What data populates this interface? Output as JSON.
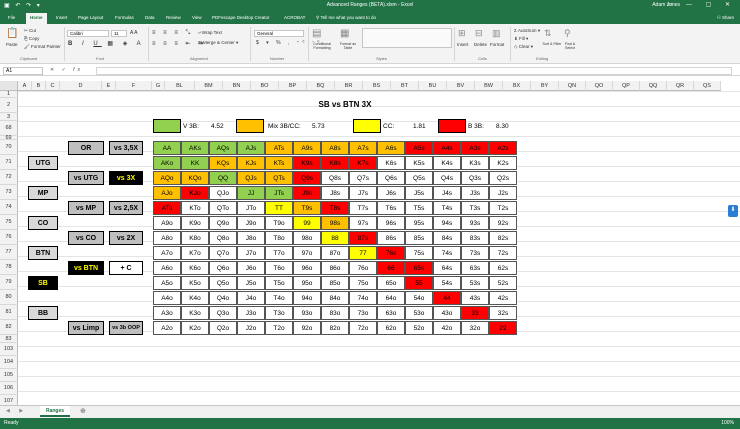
{
  "window": {
    "title": "Advanced Ranges (BETA).xlsm - Excel",
    "user": "Adam Jones"
  },
  "tabs": [
    "File",
    "Home",
    "Insert",
    "Page Layout",
    "Formulas",
    "Data",
    "Review",
    "View",
    "PDFescape Desktop Creator",
    "ACROBAT"
  ],
  "tell_me": "Tell me what you want to do",
  "share_label": "Share",
  "ribbon": {
    "paste": "Paste",
    "cut": "Cut",
    "copy": "Copy",
    "format_painter": "Format Painter",
    "clipboard": "Clipboard",
    "font": "Font",
    "font_name": "Calibri",
    "font_size": "11",
    "alignment": "Alignment",
    "wrap_text": "Wrap Text",
    "merge_center": "Merge & Center",
    "number": "Number",
    "number_format": "General",
    "conditional_formatting": "Conditional Formatting",
    "format_as_table": "Format as Table",
    "styles": "Styles",
    "cells": "Cells",
    "insert": "Insert",
    "delete": "Delete",
    "format": "Format",
    "autosum": "AutoSum",
    "fill": "Fill",
    "clear": "Clear",
    "sort_filter": "Sort & Filter",
    "find_select": "Find & Select",
    "editing": "Editing"
  },
  "formula_bar": {
    "name_box": "A1",
    "fx": "fx",
    "value": ""
  },
  "columns": [
    "A",
    "B",
    "C",
    "D",
    "E",
    "F",
    "G",
    "BL",
    "BM",
    "BN",
    "BO",
    "BP",
    "BQ",
    "BR",
    "BS",
    "BT",
    "BU",
    "BV",
    "BW",
    "BX",
    "BY",
    "QN",
    "QO",
    "QP",
    "QQ",
    "QR",
    "QS"
  ],
  "rows": [
    "1",
    "2",
    "3",
    "68",
    "69",
    "70",
    "71",
    "72",
    "73",
    "74",
    "75",
    "76",
    "77",
    "78",
    "79",
    "80",
    "81",
    "82",
    "83",
    "103",
    "104",
    "105",
    "106",
    "107"
  ],
  "sheet": {
    "title": "SB vs BTN 3X",
    "legend": [
      {
        "label": "V 3B:",
        "value": "4.52",
        "color": "#92d050"
      },
      {
        "label": "Mix 3B/CC:",
        "value": "5.73",
        "color": "#ffc000"
      },
      {
        "label": "CC:",
        "value": "1.81",
        "color": "#ffff00"
      },
      {
        "label": "B 3B:",
        "value": "8.30",
        "color": "#ff0000"
      }
    ],
    "buttons_left": [
      {
        "text": "UTG",
        "row": 1,
        "color": "#d9d9d9",
        "textColor": "#000"
      },
      {
        "text": "MP",
        "row": 3,
        "color": "#d9d9d9",
        "textColor": "#000"
      },
      {
        "text": "CO",
        "row": 5,
        "color": "#d9d9d9",
        "textColor": "#000"
      },
      {
        "text": "BTN",
        "row": 7,
        "color": "#d9d9d9",
        "textColor": "#000"
      },
      {
        "text": "SB",
        "row": 9,
        "color": "#000",
        "textColor": "#ffff00"
      },
      {
        "text": "BB",
        "row": 11,
        "color": "#d9d9d9",
        "textColor": "#000"
      }
    ],
    "buttons_mid": [
      {
        "text": "OR",
        "row": 0,
        "color": "#bfbfbf",
        "textColor": "#000"
      },
      {
        "text": "vs UTG",
        "row": 2,
        "color": "#bfbfbf",
        "textColor": "#000"
      },
      {
        "text": "vs MP",
        "row": 4,
        "color": "#bfbfbf",
        "textColor": "#000"
      },
      {
        "text": "vs CO",
        "row": 6,
        "color": "#bfbfbf",
        "textColor": "#000"
      },
      {
        "text": "vs BTN",
        "row": 8,
        "color": "#000",
        "textColor": "#ffff00"
      },
      {
        "text": "vs Limp",
        "row": 12,
        "color": "#bfbfbf",
        "textColor": "#000"
      }
    ],
    "buttons_right": [
      {
        "text": "vs 3,5X",
        "row": 0,
        "color": "#bfbfbf",
        "textColor": "#000"
      },
      {
        "text": "vs 3X",
        "row": 2,
        "color": "#000",
        "textColor": "#ffff00"
      },
      {
        "text": "vs 2,5X",
        "row": 4,
        "color": "#bfbfbf",
        "textColor": "#000"
      },
      {
        "text": "vs 2X",
        "row": 6,
        "color": "#bfbfbf",
        "textColor": "#000"
      },
      {
        "text": "+ C",
        "row": 8,
        "color": "#fff",
        "textColor": "#000"
      },
      {
        "text": "vs 3b OOP",
        "row": 12,
        "color": "#bfbfbf",
        "textColor": "#000"
      }
    ],
    "matrix": [
      [
        "AA",
        "AKs",
        "AQs",
        "AJs",
        "ATs",
        "A9s",
        "A8s",
        "A7s",
        "A6s",
        "A5s",
        "A4s",
        "A3s",
        "A2s"
      ],
      [
        "AKo",
        "KK",
        "KQs",
        "KJs",
        "KTs",
        "K9s",
        "K8s",
        "K7s",
        "K6s",
        "K5s",
        "K4s",
        "K3s",
        "K2s"
      ],
      [
        "AQo",
        "KQo",
        "QQ",
        "QJs",
        "QTs",
        "Q9s",
        "Q8s",
        "Q7s",
        "Q6s",
        "Q5s",
        "Q4s",
        "Q3s",
        "Q2s"
      ],
      [
        "AJo",
        "KJo",
        "QJo",
        "JJ",
        "JTs",
        "J9s",
        "J8s",
        "J7s",
        "J6s",
        "J5s",
        "J4s",
        "J3s",
        "J2s"
      ],
      [
        "ATo",
        "KTo",
        "QTo",
        "JTo",
        "TT",
        "T9s",
        "T8s",
        "T7s",
        "T6s",
        "T5s",
        "T4s",
        "T3s",
        "T2s"
      ],
      [
        "A9o",
        "K9o",
        "Q9o",
        "J9o",
        "T9o",
        "99",
        "98s",
        "97s",
        "96s",
        "95s",
        "94s",
        "93s",
        "92s"
      ],
      [
        "A8o",
        "K8o",
        "Q8o",
        "J8o",
        "T8o",
        "98o",
        "88",
        "87s",
        "86s",
        "85s",
        "84s",
        "83s",
        "82s"
      ],
      [
        "A7o",
        "K7o",
        "Q7o",
        "J7o",
        "T7o",
        "97o",
        "87o",
        "77",
        "76s",
        "75s",
        "74s",
        "73s",
        "72s"
      ],
      [
        "A6o",
        "K6o",
        "Q6o",
        "J6o",
        "T6o",
        "96o",
        "86o",
        "76o",
        "66",
        "65s",
        "64s",
        "63s",
        "62s"
      ],
      [
        "A5o",
        "K5o",
        "Q5o",
        "J5o",
        "T5o",
        "95o",
        "85o",
        "75o",
        "65o",
        "55",
        "54s",
        "53s",
        "52s"
      ],
      [
        "A4o",
        "K4o",
        "Q4o",
        "J4o",
        "T4o",
        "94o",
        "84o",
        "74o",
        "64o",
        "54o",
        "44",
        "43s",
        "42s"
      ],
      [
        "A3o",
        "K3o",
        "Q3o",
        "J3o",
        "T3o",
        "93o",
        "83o",
        "73o",
        "63o",
        "53o",
        "43o",
        "33",
        "32s"
      ],
      [
        "A2o",
        "K2o",
        "Q2o",
        "J2o",
        "T2o",
        "92o",
        "82o",
        "72o",
        "62o",
        "52o",
        "42o",
        "32o",
        "22"
      ]
    ],
    "matrix_colors": [
      [
        "G",
        "G",
        "G",
        "G",
        "O",
        "O",
        "O",
        "O",
        "O",
        "R",
        "R",
        "R",
        "R"
      ],
      [
        "G",
        "G",
        "O",
        "O",
        "O",
        "R",
        "R",
        "R",
        "W",
        "W",
        "W",
        "W",
        "W"
      ],
      [
        "O",
        "O",
        "G",
        "O",
        "O",
        "R",
        "W",
        "W",
        "W",
        "W",
        "W",
        "W",
        "W"
      ],
      [
        "O",
        "R",
        "W",
        "G",
        "G",
        "R",
        "W",
        "W",
        "W",
        "W",
        "W",
        "W",
        "W"
      ],
      [
        "R",
        "W",
        "W",
        "W",
        "Y",
        "O",
        "R",
        "W",
        "W",
        "W",
        "W",
        "W",
        "W"
      ],
      [
        "W",
        "W",
        "W",
        "W",
        "W",
        "Y",
        "O",
        "W",
        "W",
        "W",
        "W",
        "W",
        "W"
      ],
      [
        "W",
        "W",
        "W",
        "W",
        "W",
        "W",
        "Y",
        "R",
        "W",
        "W",
        "W",
        "W",
        "W"
      ],
      [
        "W",
        "W",
        "W",
        "W",
        "W",
        "W",
        "W",
        "Y",
        "R",
        "W",
        "W",
        "W",
        "W"
      ],
      [
        "W",
        "W",
        "W",
        "W",
        "W",
        "W",
        "W",
        "W",
        "R",
        "R",
        "W",
        "W",
        "W"
      ],
      [
        "W",
        "W",
        "W",
        "W",
        "W",
        "W",
        "W",
        "W",
        "W",
        "R",
        "W",
        "W",
        "W"
      ],
      [
        "W",
        "W",
        "W",
        "W",
        "W",
        "W",
        "W",
        "W",
        "W",
        "W",
        "R",
        "W",
        "W"
      ],
      [
        "W",
        "W",
        "W",
        "W",
        "W",
        "W",
        "W",
        "W",
        "W",
        "W",
        "W",
        "R",
        "W"
      ],
      [
        "W",
        "W",
        "W",
        "W",
        "W",
        "W",
        "W",
        "W",
        "W",
        "W",
        "W",
        "W",
        "R"
      ]
    ],
    "palette": {
      "G": "#92d050",
      "O": "#ffc000",
      "Y": "#ffff00",
      "R": "#ff0000",
      "W": "#ffffff"
    }
  },
  "sheet_tabs": [
    "Ranges"
  ],
  "status": {
    "ready": "Ready",
    "zoom": "100%"
  }
}
